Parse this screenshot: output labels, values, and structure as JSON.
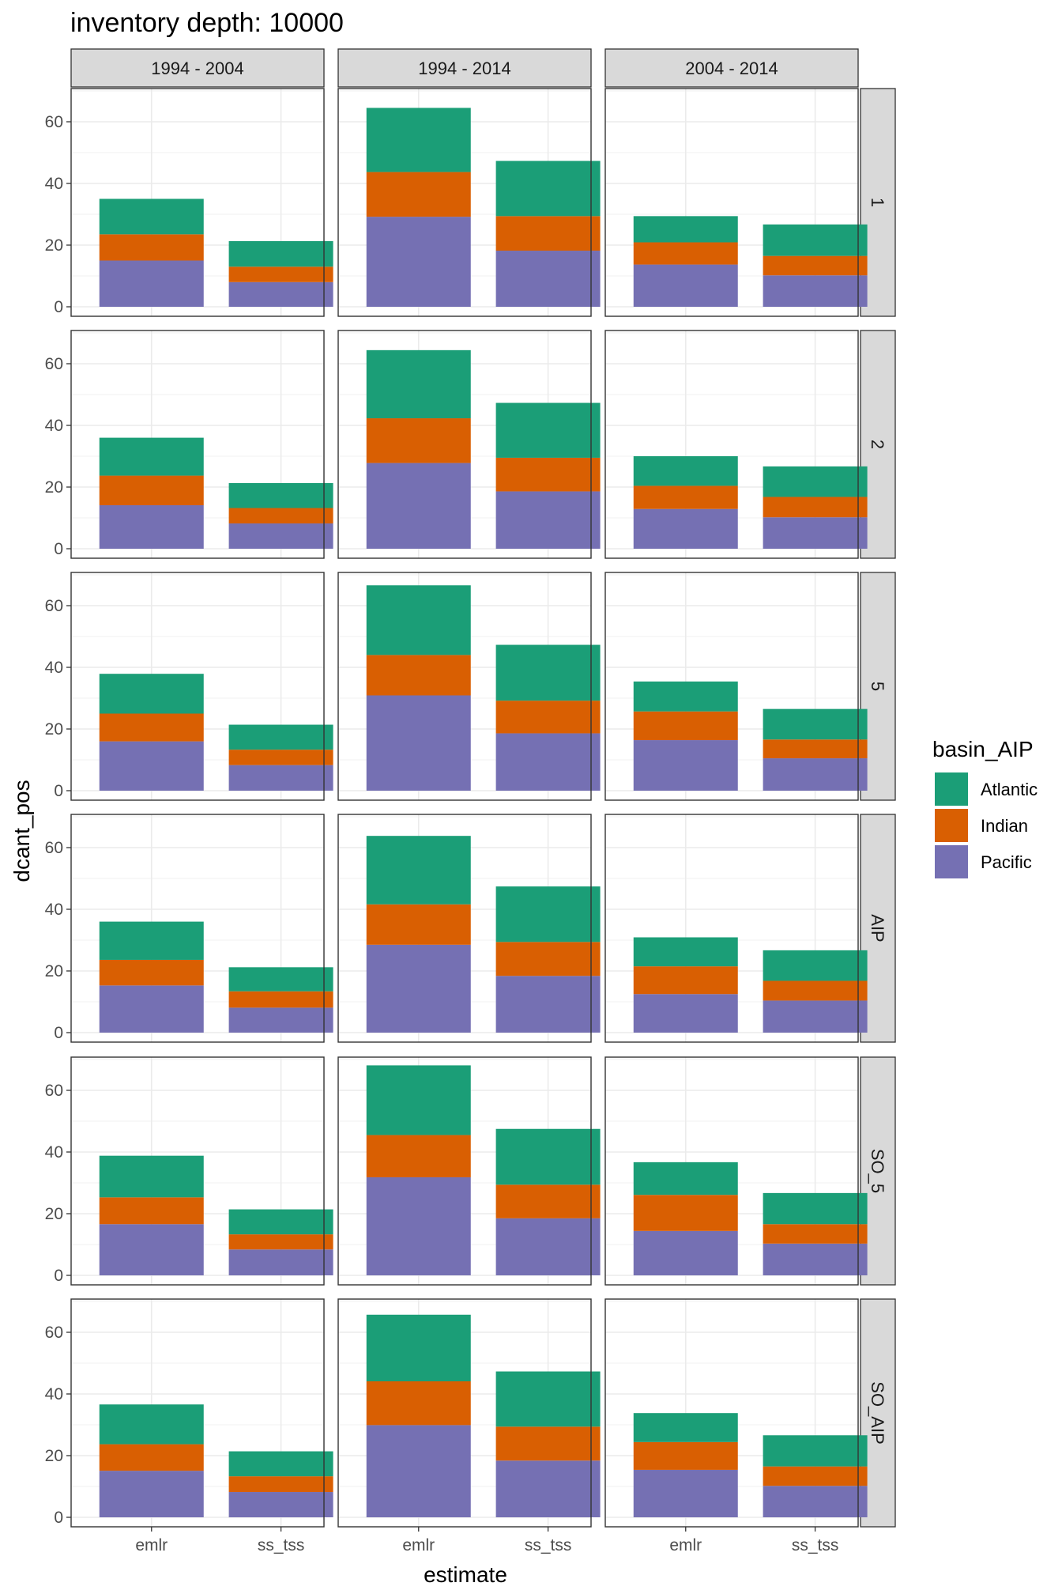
{
  "chart_data": {
    "type": "bar",
    "stacked": true,
    "title": "inventory depth: 10000",
    "xlabel": "estimate",
    "ylabel": "dcant_pos",
    "ylim": [
      0,
      70
    ],
    "yticks": [
      0,
      20,
      40,
      60
    ],
    "grid": true,
    "legend": {
      "title": "basin_AIP",
      "position": "right",
      "entries": [
        {
          "name": "Atlantic",
          "color": "#1B9E77"
        },
        {
          "name": "Indian",
          "color": "#D95F02"
        },
        {
          "name": "Pacific",
          "color": "#7570B3"
        }
      ]
    },
    "stack_order": [
      "Pacific",
      "Indian",
      "Atlantic"
    ],
    "categories": [
      "emlr",
      "ss_tss"
    ],
    "col_facets": [
      "1994 - 2004",
      "1994 - 2014",
      "2004 - 2014"
    ],
    "row_facets": [
      "1",
      "2",
      "5",
      "AIP",
      "SO_5",
      "SO_AIP"
    ],
    "panels": [
      [
        {
          "emlr": {
            "Pacific": 15,
            "Indian": 8.5,
            "Atlantic": 11.5
          },
          "ss_tss": {
            "Pacific": 8,
            "Indian": 5,
            "Atlantic": 8.3
          }
        },
        {
          "emlr": {
            "Pacific": 29.2,
            "Indian": 14.5,
            "Atlantic": 20.8
          },
          "ss_tss": {
            "Pacific": 18.2,
            "Indian": 11.2,
            "Atlantic": 17.9
          }
        },
        {
          "emlr": {
            "Pacific": 13.7,
            "Indian": 7.2,
            "Atlantic": 8.5
          },
          "ss_tss": {
            "Pacific": 10.2,
            "Indian": 6.3,
            "Atlantic": 10.2
          }
        }
      ],
      [
        {
          "emlr": {
            "Pacific": 14.1,
            "Indian": 9.6,
            "Atlantic": 12.3
          },
          "ss_tss": {
            "Pacific": 8.2,
            "Indian": 5,
            "Atlantic": 8.1
          }
        },
        {
          "emlr": {
            "Pacific": 27.8,
            "Indian": 14.5,
            "Atlantic": 22.1
          },
          "ss_tss": {
            "Pacific": 18.6,
            "Indian": 10.9,
            "Atlantic": 17.8
          }
        },
        {
          "emlr": {
            "Pacific": 12.9,
            "Indian": 7.5,
            "Atlantic": 9.6
          },
          "ss_tss": {
            "Pacific": 10.2,
            "Indian": 6.6,
            "Atlantic": 9.9
          }
        }
      ],
      [
        {
          "emlr": {
            "Pacific": 16,
            "Indian": 9,
            "Atlantic": 12.9
          },
          "ss_tss": {
            "Pacific": 8.3,
            "Indian": 5,
            "Atlantic": 8.1
          }
        },
        {
          "emlr": {
            "Pacific": 30.9,
            "Indian": 13.1,
            "Atlantic": 22.6
          },
          "ss_tss": {
            "Pacific": 18.6,
            "Indian": 10.6,
            "Atlantic": 18.1
          }
        },
        {
          "emlr": {
            "Pacific": 16.4,
            "Indian": 9.3,
            "Atlantic": 9.7
          },
          "ss_tss": {
            "Pacific": 10.5,
            "Indian": 6.1,
            "Atlantic": 9.9
          }
        }
      ],
      [
        {
          "emlr": {
            "Pacific": 15.3,
            "Indian": 8.3,
            "Atlantic": 12.4
          },
          "ss_tss": {
            "Pacific": 8.1,
            "Indian": 5.3,
            "Atlantic": 7.8
          }
        },
        {
          "emlr": {
            "Pacific": 28.5,
            "Indian": 13.1,
            "Atlantic": 22.2
          },
          "ss_tss": {
            "Pacific": 18.4,
            "Indian": 11,
            "Atlantic": 18
          }
        },
        {
          "emlr": {
            "Pacific": 12.5,
            "Indian": 9,
            "Atlantic": 9.4
          },
          "ss_tss": {
            "Pacific": 10.4,
            "Indian": 6.4,
            "Atlantic": 9.9
          }
        }
      ],
      [
        {
          "emlr": {
            "Pacific": 16.6,
            "Indian": 8.7,
            "Atlantic": 13.5
          },
          "ss_tss": {
            "Pacific": 8.4,
            "Indian": 4.9,
            "Atlantic": 8.1
          }
        },
        {
          "emlr": {
            "Pacific": 31.8,
            "Indian": 13.7,
            "Atlantic": 22.6
          },
          "ss_tss": {
            "Pacific": 18.5,
            "Indian": 10.9,
            "Atlantic": 18.1
          }
        },
        {
          "emlr": {
            "Pacific": 14.4,
            "Indian": 11.7,
            "Atlantic": 10.6
          },
          "ss_tss": {
            "Pacific": 10.3,
            "Indian": 6.3,
            "Atlantic": 10.1
          }
        }
      ],
      [
        {
          "emlr": {
            "Pacific": 15.1,
            "Indian": 8.6,
            "Atlantic": 12.9
          },
          "ss_tss": {
            "Pacific": 8.2,
            "Indian": 5.1,
            "Atlantic": 8.1
          }
        },
        {
          "emlr": {
            "Pacific": 29.9,
            "Indian": 14.2,
            "Atlantic": 21.6
          },
          "ss_tss": {
            "Pacific": 18.4,
            "Indian": 11,
            "Atlantic": 17.9
          }
        },
        {
          "emlr": {
            "Pacific": 15.4,
            "Indian": 9,
            "Atlantic": 9.4
          },
          "ss_tss": {
            "Pacific": 10.2,
            "Indian": 6.3,
            "Atlantic": 10.1
          }
        }
      ]
    ]
  }
}
